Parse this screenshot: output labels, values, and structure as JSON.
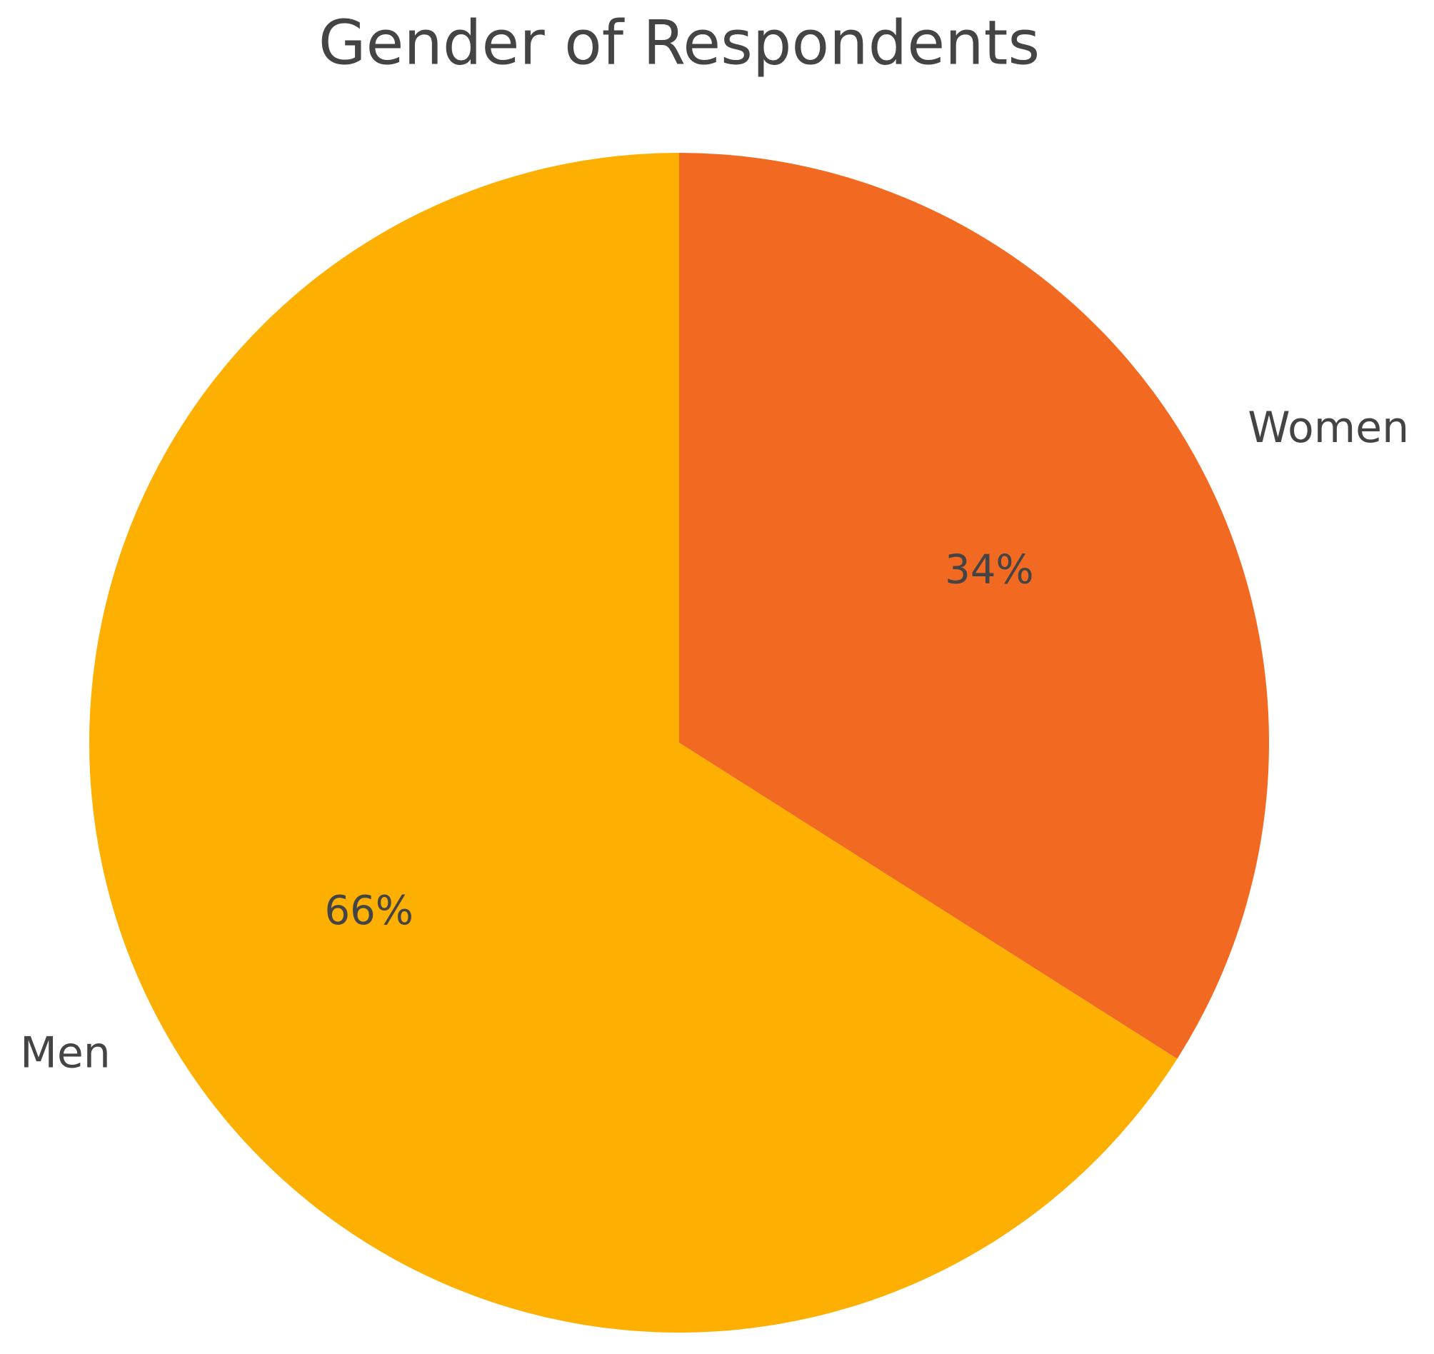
{
  "chart_data": {
    "type": "pie",
    "title": "Gender of Respondents",
    "categories": [
      "Women",
      "Men"
    ],
    "values": [
      34,
      66
    ],
    "value_labels": [
      "34%",
      "66%"
    ],
    "colors": [
      "#f26a22",
      "#fdaf02"
    ]
  }
}
